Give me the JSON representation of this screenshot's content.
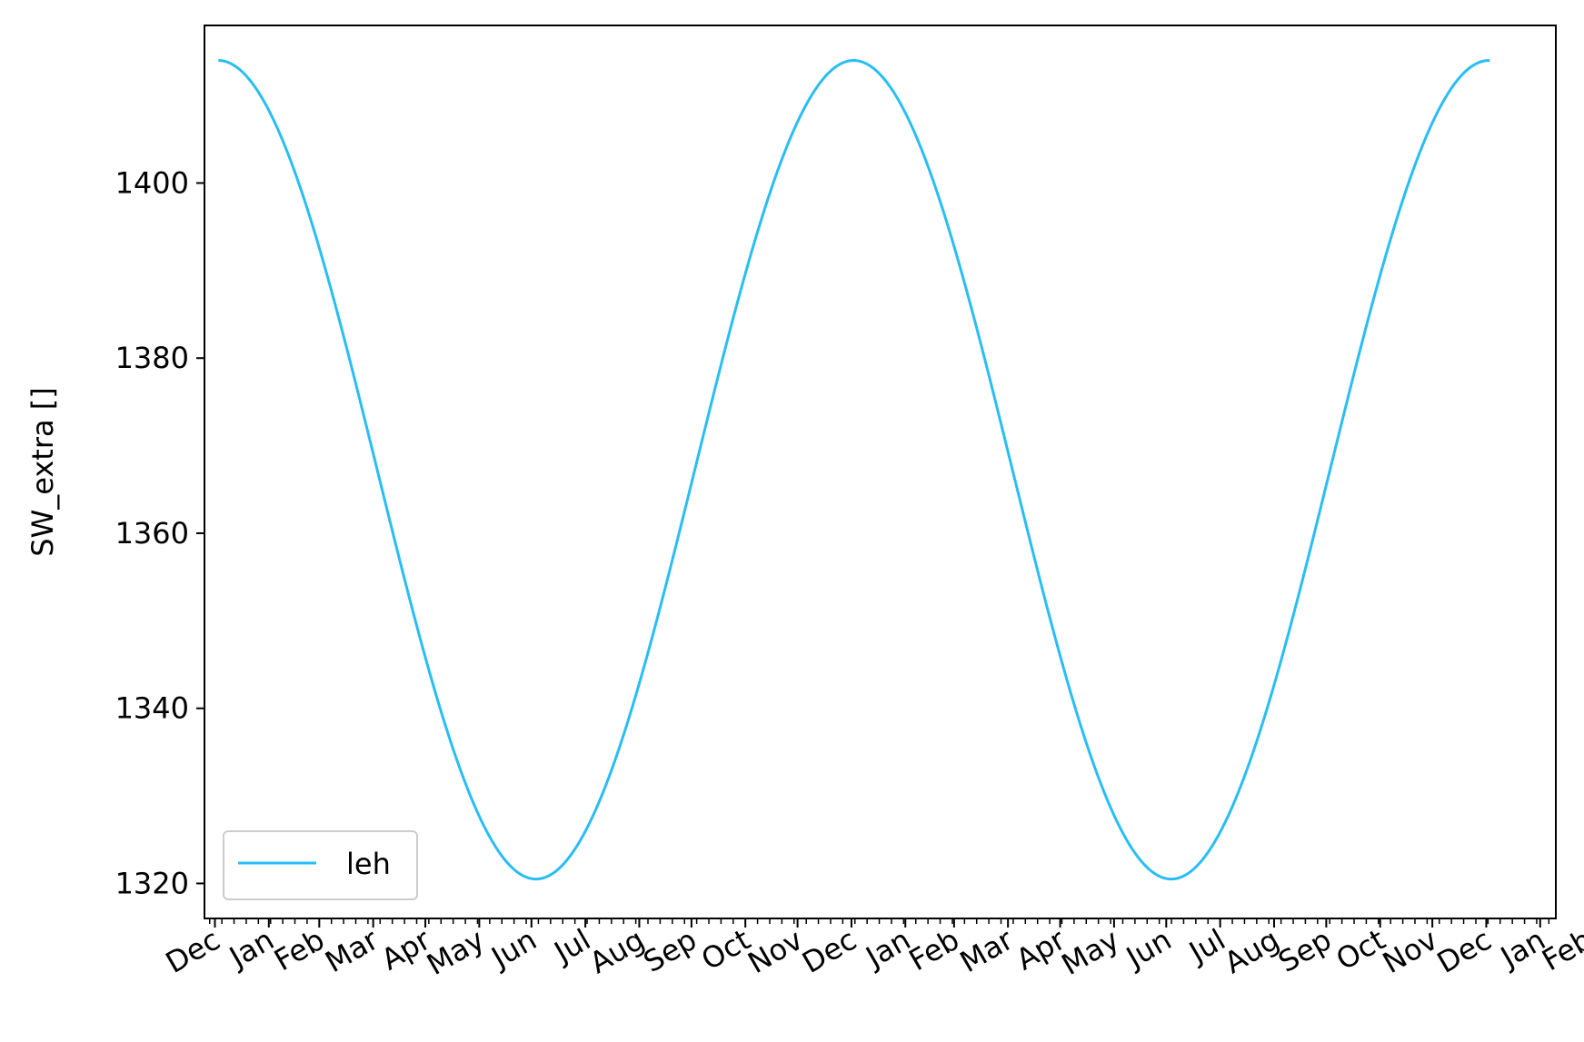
{
  "chart_data": {
    "type": "line",
    "title": "",
    "xlabel": "",
    "ylabel": "SW_extra []",
    "ylim": [
      1316,
      1418
    ],
    "yticks": [
      1320,
      1340,
      1360,
      1380,
      1400
    ],
    "xlim": [
      "2019-12-26",
      "2022-02-10"
    ],
    "x_tick_labels": [
      "Dec",
      "Jan",
      "Feb",
      "Mar",
      "Apr",
      "May",
      "Jun",
      "Jul",
      "Aug",
      "Sep",
      "Oct",
      "Nov",
      "Dec",
      "Jan",
      "Feb",
      "Mar",
      "Apr",
      "May",
      "Jun",
      "Jul",
      "Aug",
      "Sep",
      "Oct",
      "Nov",
      "Dec",
      "Jan",
      "Feb"
    ],
    "x_tick_dates": [
      "2020-01-01",
      "2020-02-01",
      "2020-03-01",
      "2020-04-01",
      "2020-05-01",
      "2020-06-01",
      "2020-07-01",
      "2020-08-01",
      "2020-09-01",
      "2020-10-01",
      "2020-11-01",
      "2020-12-01",
      "2021-01-01",
      "2021-02-01",
      "2021-03-01",
      "2021-04-01",
      "2021-05-01",
      "2021-06-01",
      "2021-07-01",
      "2021-08-01",
      "2021-09-01",
      "2021-10-01",
      "2021-11-01",
      "2021-12-01",
      "2022-01-01",
      "2022-02-01",
      "2022-02-28"
    ],
    "x_minor_ticks": "weekly",
    "grid": false,
    "legend_position": "lower left",
    "colors": {
      "series": "#29BDF6",
      "axes": "#000000",
      "legend_border": "#CCCCCC"
    },
    "series": [
      {
        "name": "leh",
        "x": [
          "2020-01-03",
          "2020-02-03",
          "2020-03-03",
          "2020-04-03",
          "2020-05-03",
          "2020-06-03",
          "2020-07-03",
          "2020-08-03",
          "2020-09-03",
          "2020-10-03",
          "2020-11-03",
          "2020-12-03",
          "2021-01-03",
          "2021-02-03",
          "2021-03-03",
          "2021-04-03",
          "2021-05-03",
          "2021-06-03",
          "2021-07-03",
          "2021-08-03",
          "2021-09-03",
          "2021-10-03",
          "2021-11-03",
          "2021-12-03",
          "2022-01-03"
        ],
        "y": [
          1414.0,
          1407.6,
          1391.4,
          1368.4,
          1344.9,
          1327.5,
          1320.5,
          1326.6,
          1343.4,
          1366.8,
          1389.7,
          1406.8,
          1414.0,
          1407.6,
          1391.4,
          1368.4,
          1344.9,
          1327.5,
          1320.5,
          1326.6,
          1343.4,
          1366.8,
          1389.7,
          1406.8,
          1414.0
        ],
        "period_days": 365.25,
        "max": 1414.0,
        "min": 1320.5,
        "max_date": "2020-01-03"
      }
    ]
  }
}
